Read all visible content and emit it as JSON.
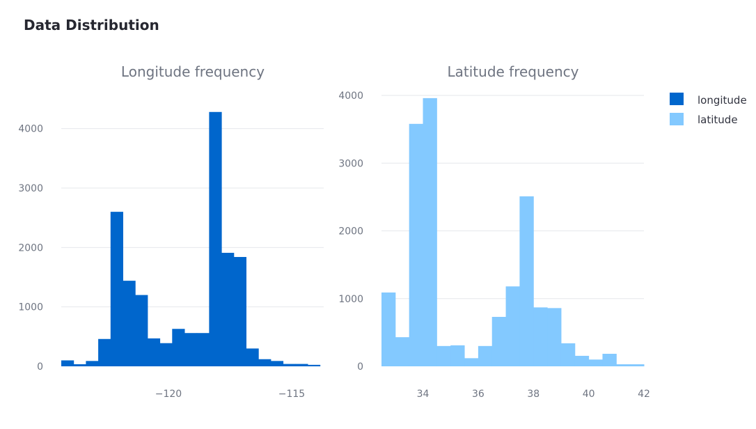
{
  "page": {
    "title": "Data Distribution"
  },
  "colors": {
    "longitude": "#0066cc",
    "latitude": "#83c9ff",
    "grid": "#e6e7eb",
    "text": "#6e7481"
  },
  "legend": {
    "placement": "top-right",
    "items": [
      {
        "label": "longitude",
        "color": "#0066cc"
      },
      {
        "label": "latitude",
        "color": "#83c9ff"
      }
    ]
  },
  "chart_data": [
    {
      "type": "bar",
      "title": "Longitude frequency",
      "series": [
        {
          "name": "longitude",
          "color": "#0066cc"
        }
      ],
      "xlim": [
        -124.35,
        -113.7
      ],
      "ylim": [
        0,
        4500
      ],
      "grid": true,
      "yticks": [
        0,
        1000,
        2000,
        3000,
        4000
      ],
      "ytick_labels": [
        "0",
        "1000",
        "2000",
        "3000",
        "4000"
      ],
      "xticks": [
        -120,
        -115
      ],
      "xtick_labels": [
        "−120",
        "−115"
      ],
      "bins": [
        {
          "x0": -124.35,
          "x1": -123.85,
          "count": 100
        },
        {
          "x0": -123.85,
          "x1": -123.35,
          "count": 35
        },
        {
          "x0": -123.35,
          "x1": -122.85,
          "count": 90
        },
        {
          "x0": -122.85,
          "x1": -122.35,
          "count": 460
        },
        {
          "x0": -122.35,
          "x1": -121.85,
          "count": 2600
        },
        {
          "x0": -121.85,
          "x1": -121.35,
          "count": 1440
        },
        {
          "x0": -121.35,
          "x1": -120.85,
          "count": 1200
        },
        {
          "x0": -120.85,
          "x1": -120.35,
          "count": 470
        },
        {
          "x0": -120.35,
          "x1": -119.85,
          "count": 390
        },
        {
          "x0": -119.85,
          "x1": -119.35,
          "count": 630
        },
        {
          "x0": -119.35,
          "x1": -118.85,
          "count": 560
        },
        {
          "x0": -118.85,
          "x1": -118.35,
          "count": 560
        },
        {
          "x0": -118.35,
          "x1": -117.85,
          "count": 4280
        },
        {
          "x0": -117.85,
          "x1": -117.35,
          "count": 1910
        },
        {
          "x0": -117.35,
          "x1": -116.85,
          "count": 1840
        },
        {
          "x0": -116.85,
          "x1": -116.35,
          "count": 300
        },
        {
          "x0": -116.35,
          "x1": -115.85,
          "count": 120
        },
        {
          "x0": -115.85,
          "x1": -115.35,
          "count": 90
        },
        {
          "x0": -115.35,
          "x1": -114.85,
          "count": 40
        },
        {
          "x0": -114.85,
          "x1": -114.35,
          "count": 40
        },
        {
          "x0": -114.35,
          "x1": -113.85,
          "count": 25
        }
      ]
    },
    {
      "type": "bar",
      "title": "Latitude frequency",
      "series": [
        {
          "name": "latitude",
          "color": "#83c9ff"
        }
      ],
      "xlim": [
        32.5,
        42.0
      ],
      "ylim": [
        0,
        4000
      ],
      "grid": true,
      "yticks": [
        0,
        1000,
        2000,
        3000,
        4000
      ],
      "ytick_labels": [
        "0",
        "1000",
        "2000",
        "3000",
        "4000"
      ],
      "xticks": [
        34,
        36,
        38,
        40,
        42
      ],
      "xtick_labels": [
        "34",
        "36",
        "38",
        "40",
        "42"
      ],
      "bins": [
        {
          "x0": 32.5,
          "x1": 33.0,
          "count": 1090
        },
        {
          "x0": 33.0,
          "x1": 33.5,
          "count": 430
        },
        {
          "x0": 33.5,
          "x1": 34.0,
          "count": 3580
        },
        {
          "x0": 34.0,
          "x1": 34.5,
          "count": 3960
        },
        {
          "x0": 34.5,
          "x1": 35.0,
          "count": 300
        },
        {
          "x0": 35.0,
          "x1": 35.5,
          "count": 310
        },
        {
          "x0": 35.5,
          "x1": 36.0,
          "count": 120
        },
        {
          "x0": 36.0,
          "x1": 36.5,
          "count": 300
        },
        {
          "x0": 36.5,
          "x1": 37.0,
          "count": 730
        },
        {
          "x0": 37.0,
          "x1": 37.5,
          "count": 1180
        },
        {
          "x0": 37.5,
          "x1": 38.0,
          "count": 2510
        },
        {
          "x0": 38.0,
          "x1": 38.5,
          "count": 870
        },
        {
          "x0": 38.5,
          "x1": 39.0,
          "count": 860
        },
        {
          "x0": 39.0,
          "x1": 39.5,
          "count": 340
        },
        {
          "x0": 39.5,
          "x1": 40.0,
          "count": 155
        },
        {
          "x0": 40.0,
          "x1": 40.5,
          "count": 100
        },
        {
          "x0": 40.5,
          "x1": 41.0,
          "count": 185
        },
        {
          "x0": 41.0,
          "x1": 41.5,
          "count": 30
        },
        {
          "x0": 41.5,
          "x1": 42.0,
          "count": 30
        }
      ]
    }
  ]
}
